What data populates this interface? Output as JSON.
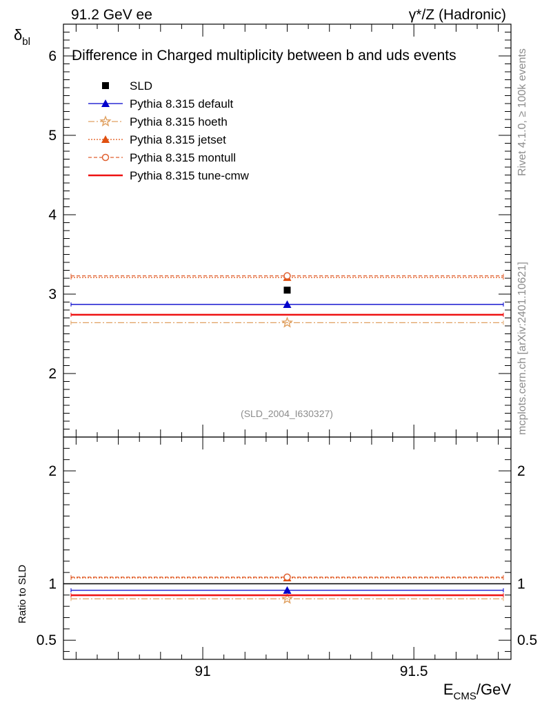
{
  "header": {
    "left": "91.2 GeV ee",
    "right": "γ*/Z (Hadronic)"
  },
  "side_labels": {
    "rivet": "Rivet 4.1.0, ≥ 100k events",
    "mcplots": "mcplots.cern.ch [arXiv:2401.10621]"
  },
  "chart_data": {
    "type": "line",
    "title": "Difference in Charged multiplicity between b and uds events",
    "analysis_id": "(SLD_2004_I630327)",
    "x_axis": {
      "label_main": "E",
      "label_sub": "CMS",
      "label_tail": "/GeV",
      "range": [
        90.67,
        91.73
      ],
      "ticks": [
        91,
        91.5
      ],
      "tick_labels": [
        "91",
        "91.5"
      ]
    },
    "main_panel": {
      "y_label_main": "δ",
      "y_label_sub": "bl",
      "y_range": [
        1.2,
        6.4
      ],
      "ticks": [
        2,
        3,
        4,
        5,
        6
      ],
      "tick_labels": [
        "2",
        "3",
        "4",
        "5",
        "6"
      ]
    },
    "ratio_panel": {
      "y_label": "Ratio to SLD",
      "y_range": [
        0.33,
        2.3
      ],
      "ticks": [
        0.5,
        1,
        2
      ],
      "tick_labels": [
        "0.5",
        "1",
        "2"
      ]
    },
    "data_point": {
      "name": "SLD",
      "x": 91.2,
      "y": 3.05,
      "color": "#000000"
    },
    "series": [
      {
        "name": "Pythia 8.315 default",
        "y": 2.87,
        "ratio": 0.942,
        "color": "#0000cc",
        "dash": "",
        "marker": "triangle-filled"
      },
      {
        "name": "Pythia 8.315 hoeth",
        "y": 2.64,
        "ratio": 0.866,
        "color": "#e0a060",
        "dash": "9,3,2,3",
        "marker": "star-open"
      },
      {
        "name": "Pythia 8.315 jetset",
        "y": 3.21,
        "ratio": 1.052,
        "color": "#e05010",
        "dash": "2,2",
        "marker": "triangle-filled"
      },
      {
        "name": "Pythia 8.315 montull",
        "y": 3.23,
        "ratio": 1.059,
        "color": "#e06030",
        "dash": "5,3",
        "marker": "circle-open"
      },
      {
        "name": "Pythia 8.315 tune-cmw",
        "y": 2.74,
        "ratio": 0.898,
        "color": "#ee1111",
        "dash": "",
        "marker": "none"
      }
    ]
  }
}
